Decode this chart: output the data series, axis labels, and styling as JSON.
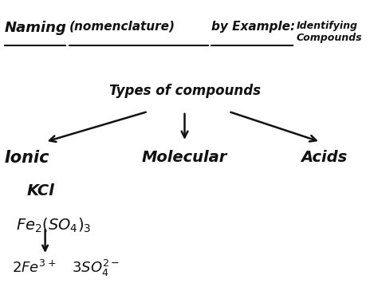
{
  "bg_color": "#ffffff",
  "font_color": "#111111",
  "title_naming": "Naming",
  "title_nomenclature": "(nomenclature)",
  "title_byexample": "by Example:",
  "title_identifying": "Identifying\nCompounds",
  "subtitle": "Types of compounds",
  "cat_ionic": "Ionic",
  "cat_molecular": "Molecular",
  "cat_acids": "Acids",
  "kcl": "KCl",
  "fe_formula": "$\\mathit{Fe_2(SO_4)_3}$",
  "decomp": "$\\mathit{2Fe^{3+}\\ \\ \\ 3SO_4^{2-}}$"
}
